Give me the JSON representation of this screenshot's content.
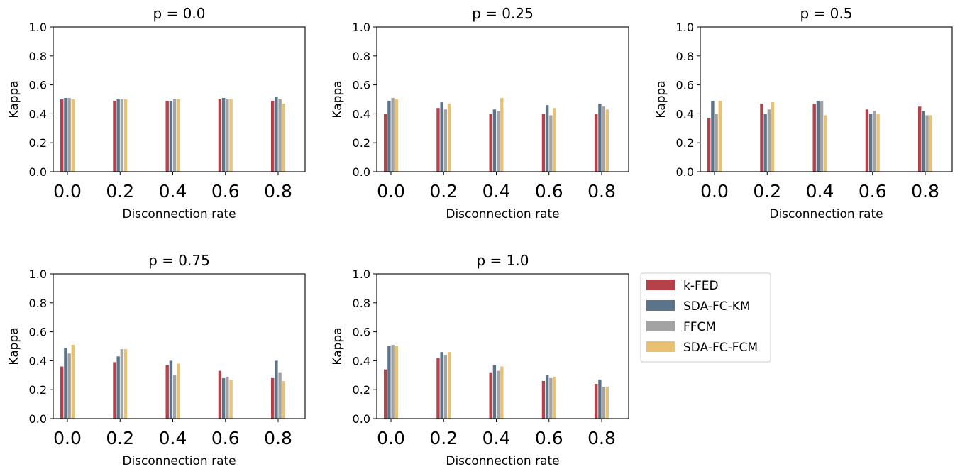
{
  "legend": {
    "placement": "right of bottom row",
    "items": [
      {
        "name": "k-FED",
        "color": "#b5424a"
      },
      {
        "name": "SDA-FC-KM",
        "color": "#5b7489"
      },
      {
        "name": "FFCM",
        "color": "#a3a3a3"
      },
      {
        "name": "SDA-FC-FCM",
        "color": "#e8c173"
      }
    ]
  },
  "chart_data": [
    {
      "type": "bar",
      "title": "p = 0.0",
      "xlabel": "Disconnection rate",
      "ylabel": "Kappa",
      "categories": [
        "0.0",
        "0.2",
        "0.4",
        "0.6",
        "0.8"
      ],
      "ylim": [
        0,
        1.0
      ],
      "yticks": [
        "0.0",
        "0.2",
        "0.4",
        "0.6",
        "0.8",
        "1.0"
      ],
      "grid": false,
      "series": [
        {
          "name": "k-FED",
          "values": [
            0.5,
            0.49,
            0.49,
            0.5,
            0.49
          ]
        },
        {
          "name": "SDA-FC-KM",
          "values": [
            0.51,
            0.5,
            0.49,
            0.51,
            0.52
          ]
        },
        {
          "name": "FFCM",
          "values": [
            0.51,
            0.5,
            0.5,
            0.5,
            0.5
          ]
        },
        {
          "name": "SDA-FC-FCM",
          "values": [
            0.5,
            0.5,
            0.5,
            0.5,
            0.47
          ]
        }
      ]
    },
    {
      "type": "bar",
      "title": "p = 0.25",
      "xlabel": "Disconnection rate",
      "ylabel": "Kappa",
      "categories": [
        "0.0",
        "0.2",
        "0.4",
        "0.6",
        "0.8"
      ],
      "ylim": [
        0,
        1.0
      ],
      "yticks": [
        "0.0",
        "0.2",
        "0.4",
        "0.6",
        "0.8",
        "1.0"
      ],
      "grid": false,
      "series": [
        {
          "name": "k-FED",
          "values": [
            0.4,
            0.44,
            0.4,
            0.4,
            0.4
          ]
        },
        {
          "name": "SDA-FC-KM",
          "values": [
            0.49,
            0.48,
            0.43,
            0.46,
            0.47
          ]
        },
        {
          "name": "FFCM",
          "values": [
            0.51,
            0.43,
            0.42,
            0.39,
            0.45
          ]
        },
        {
          "name": "SDA-FC-FCM",
          "values": [
            0.5,
            0.47,
            0.51,
            0.44,
            0.43
          ]
        }
      ]
    },
    {
      "type": "bar",
      "title": "p = 0.5",
      "xlabel": "Disconnection rate",
      "ylabel": "Kappa",
      "categories": [
        "0.0",
        "0.2",
        "0.4",
        "0.6",
        "0.8"
      ],
      "ylim": [
        0,
        1.0
      ],
      "yticks": [
        "0.0",
        "0.2",
        "0.4",
        "0.6",
        "0.8",
        "1.0"
      ],
      "grid": false,
      "series": [
        {
          "name": "k-FED",
          "values": [
            0.37,
            0.47,
            0.47,
            0.43,
            0.45
          ]
        },
        {
          "name": "SDA-FC-KM",
          "values": [
            0.49,
            0.4,
            0.49,
            0.4,
            0.42
          ]
        },
        {
          "name": "FFCM",
          "values": [
            0.4,
            0.43,
            0.49,
            0.42,
            0.39
          ]
        },
        {
          "name": "SDA-FC-FCM",
          "values": [
            0.49,
            0.48,
            0.39,
            0.4,
            0.39
          ]
        }
      ]
    },
    {
      "type": "bar",
      "title": "p = 0.75",
      "xlabel": "Disconnection rate",
      "ylabel": "Kappa",
      "categories": [
        "0.0",
        "0.2",
        "0.4",
        "0.6",
        "0.8"
      ],
      "ylim": [
        0,
        1.0
      ],
      "yticks": [
        "0.0",
        "0.2",
        "0.4",
        "0.6",
        "0.8",
        "1.0"
      ],
      "grid": false,
      "series": [
        {
          "name": "k-FED",
          "values": [
            0.36,
            0.39,
            0.37,
            0.33,
            0.28
          ]
        },
        {
          "name": "SDA-FC-KM",
          "values": [
            0.49,
            0.43,
            0.4,
            0.28,
            0.4
          ]
        },
        {
          "name": "FFCM",
          "values": [
            0.45,
            0.48,
            0.3,
            0.29,
            0.32
          ]
        },
        {
          "name": "SDA-FC-FCM",
          "values": [
            0.51,
            0.48,
            0.38,
            0.27,
            0.26
          ]
        }
      ]
    },
    {
      "type": "bar",
      "title": "p = 1.0",
      "xlabel": "Disconnection rate",
      "ylabel": "Kappa",
      "categories": [
        "0.0",
        "0.2",
        "0.4",
        "0.6",
        "0.8"
      ],
      "ylim": [
        0,
        1.0
      ],
      "yticks": [
        "0.0",
        "0.2",
        "0.4",
        "0.6",
        "0.8",
        "1.0"
      ],
      "grid": false,
      "series": [
        {
          "name": "k-FED",
          "values": [
            0.34,
            0.42,
            0.32,
            0.26,
            0.24
          ]
        },
        {
          "name": "SDA-FC-KM",
          "values": [
            0.5,
            0.46,
            0.37,
            0.3,
            0.27
          ]
        },
        {
          "name": "FFCM",
          "values": [
            0.51,
            0.44,
            0.33,
            0.28,
            0.22
          ]
        },
        {
          "name": "SDA-FC-FCM",
          "values": [
            0.5,
            0.46,
            0.36,
            0.29,
            0.22
          ]
        }
      ]
    }
  ]
}
